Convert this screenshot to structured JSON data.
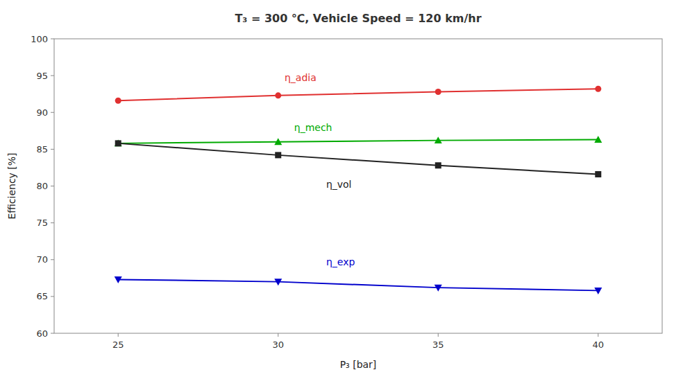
{
  "chart_data": {
    "type": "line",
    "title": "T₃ = 300 ℃,  Vehicle Speed = 120 km/hr",
    "xlabel": "P₃ [bar]",
    "ylabel": "Efficiency [%]",
    "x": [
      25,
      30,
      35,
      40
    ],
    "series": [
      {
        "color": "#e03030",
        "marker": "circle",
        "values": [
          91.6,
          92.3,
          92.8,
          93.2
        ]
      },
      {
        "color": "#00aa00",
        "marker": "triangle-up",
        "values": [
          85.8,
          86.0,
          86.2,
          86.3
        ]
      },
      {
        "color": "#222222",
        "marker": "square",
        "values": [
          85.8,
          84.2,
          82.8,
          81.6
        ]
      },
      {
        "color": "#0000cc",
        "marker": "triangle-down",
        "values": [
          67.3,
          67.0,
          66.2,
          65.8
        ]
      }
    ],
    "annotations": [
      {
        "text": "η_adia",
        "x": 30.2,
        "y": 94.3,
        "color": "#e03030"
      },
      {
        "text": "η_mech",
        "x": 30.5,
        "y": 87.5,
        "color": "#00aa00"
      },
      {
        "text": "η_vol",
        "x": 31.5,
        "y": 79.8,
        "color": "#222222"
      },
      {
        "text": "η_exp",
        "x": 31.5,
        "y": 69.2,
        "color": "#0000cc"
      }
    ],
    "xlim": [
      23,
      42
    ],
    "ylim": [
      60,
      100
    ],
    "xticks": [
      25,
      30,
      35,
      40
    ],
    "yticks": [
      60,
      65,
      70,
      75,
      80,
      85,
      90,
      95,
      100
    ],
    "grid": false
  }
}
